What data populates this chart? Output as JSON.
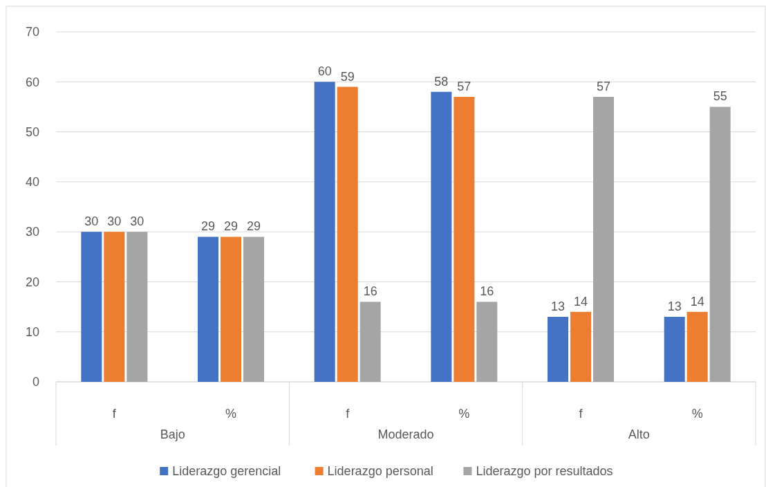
{
  "chart_data": {
    "type": "bar",
    "categories": [
      "f",
      "%",
      "f",
      "%",
      "f",
      "%"
    ],
    "series": [
      {
        "name": "Liderazgo gerencial",
        "color": "#4472c4",
        "values": [
          30,
          29,
          60,
          58,
          13,
          13
        ]
      },
      {
        "name": "Liderazgo personal",
        "color": "#ed7d31",
        "values": [
          30,
          29,
          59,
          57,
          14,
          14
        ]
      },
      {
        "name": "Liderazgo por resultados",
        "color": "#a5a5a5",
        "values": [
          30,
          29,
          16,
          16,
          57,
          55
        ]
      }
    ],
    "annotations": [
      "Bajo",
      "Moderado",
      "Alto"
    ],
    "ylim": [
      0,
      70
    ],
    "yticks": [
      0,
      10,
      20,
      30,
      40,
      50,
      60,
      70
    ],
    "grid": "y",
    "legend": "bottom",
    "data_labels": true
  }
}
